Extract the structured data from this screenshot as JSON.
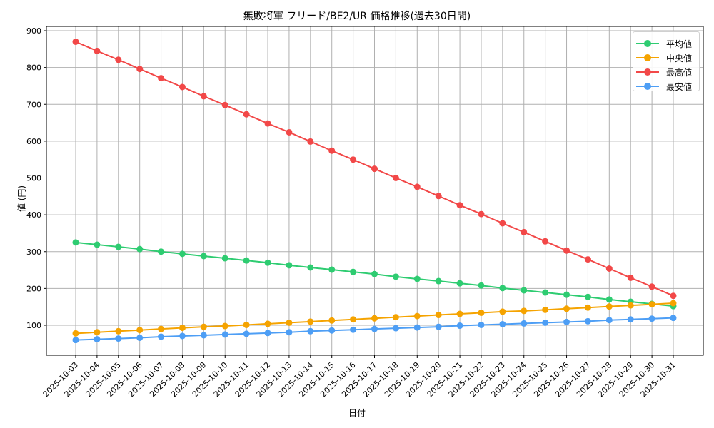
{
  "chart_data": {
    "type": "line",
    "title": "無敗将軍 フリード/BE2/UR 価格推移(過去30日間)",
    "xlabel": "日付",
    "ylabel": "値 (円)",
    "ylim": [
      19,
      912
    ],
    "yticks": [
      100,
      200,
      300,
      400,
      500,
      600,
      700,
      800,
      900
    ],
    "grid": true,
    "legend_position": "upper right",
    "categories": [
      "2025-10-03",
      "2025-10-04",
      "2025-10-05",
      "2025-10-06",
      "2025-10-07",
      "2025-10-08",
      "2025-10-09",
      "2025-10-10",
      "2025-10-11",
      "2025-10-12",
      "2025-10-13",
      "2025-10-14",
      "2025-10-15",
      "2025-10-16",
      "2025-10-17",
      "2025-10-18",
      "2025-10-19",
      "2025-10-20",
      "2025-10-21",
      "2025-10-22",
      "2025-10-23",
      "2025-10-24",
      "2025-10-25",
      "2025-10-26",
      "2025-10-27",
      "2025-10-28",
      "2025-10-29",
      "2025-10-30",
      "2025-10-31"
    ],
    "series": [
      {
        "name": "平均値",
        "color": "#2ecc71",
        "values": [
          325,
          319,
          313,
          307,
          300,
          294,
          288,
          282,
          276,
          270,
          263,
          257,
          251,
          245,
          239,
          232,
          226,
          220,
          214,
          208,
          201,
          195,
          189,
          183,
          177,
          170,
          164,
          158,
          152
        ]
      },
      {
        "name": "中央値",
        "color": "#f5a300",
        "values": [
          78,
          81,
          84,
          87,
          90,
          93,
          96,
          98,
          101,
          104,
          107,
          110,
          113,
          116,
          119,
          122,
          125,
          128,
          131,
          134,
          137,
          139,
          142,
          145,
          148,
          151,
          154,
          157,
          160
        ]
      },
      {
        "name": "最高値",
        "color": "#f24848",
        "values": [
          870,
          845,
          821,
          796,
          771,
          747,
          722,
          698,
          673,
          648,
          624,
          599,
          574,
          550,
          525,
          500,
          476,
          451,
          426,
          402,
          377,
          353,
          328,
          303,
          279,
          254,
          229,
          205,
          180
        ]
      },
      {
        "name": "最安値",
        "color": "#4d9ef5",
        "values": [
          60,
          62,
          64,
          66,
          69,
          71,
          73,
          75,
          77,
          79,
          81,
          84,
          86,
          88,
          90,
          92,
          94,
          96,
          99,
          101,
          103,
          105,
          107,
          109,
          111,
          114,
          116,
          118,
          120
        ]
      }
    ]
  }
}
